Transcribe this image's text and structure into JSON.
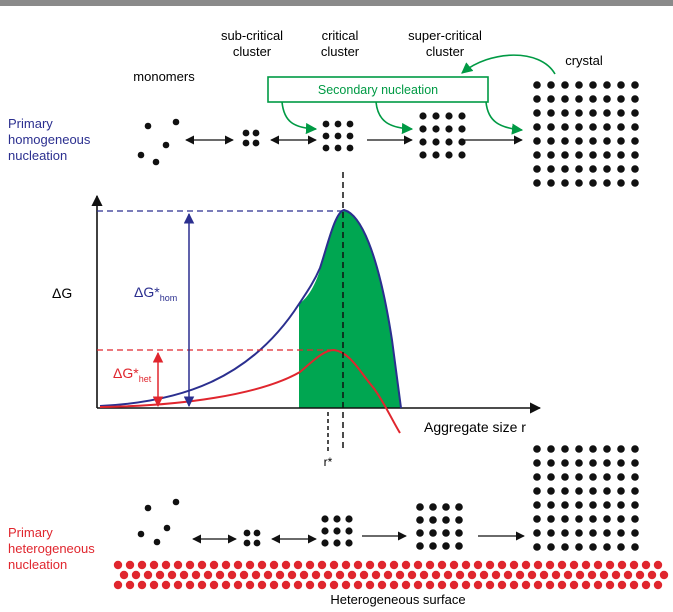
{
  "top_stages": {
    "monomers": "monomers",
    "subcritical_line1": "sub-critical",
    "subcritical_line2": "cluster",
    "critical_line1": "critical",
    "critical_line2": "cluster",
    "supercritical_line1": "super-critical",
    "supercritical_line2": "cluster",
    "crystal": "crystal"
  },
  "secondary_nucleation": "Secondary nucleation",
  "primary_homogeneous": {
    "line1": "Primary",
    "line2": "homogeneous",
    "line3": "nucleation"
  },
  "primary_heterogeneous": {
    "line1": "Primary",
    "line2": "heterogeneous",
    "line3": "nucleation"
  },
  "graph": {
    "y_label": "ΔG",
    "x_label": "Aggregate size r",
    "critical_radius": "r*",
    "dg_hom_main": "ΔG*",
    "dg_hom_sub": "hom",
    "dg_het_main": "ΔG*",
    "dg_het_sub": "het"
  },
  "heterogeneous_surface": "Heterogeneous surface",
  "colors": {
    "blue": "#2b2f8f",
    "red": "#e0262e",
    "green": "#009a44",
    "fill_green": "#00a651",
    "dot": "#111111",
    "top_border": "#8a8a8a"
  }
}
